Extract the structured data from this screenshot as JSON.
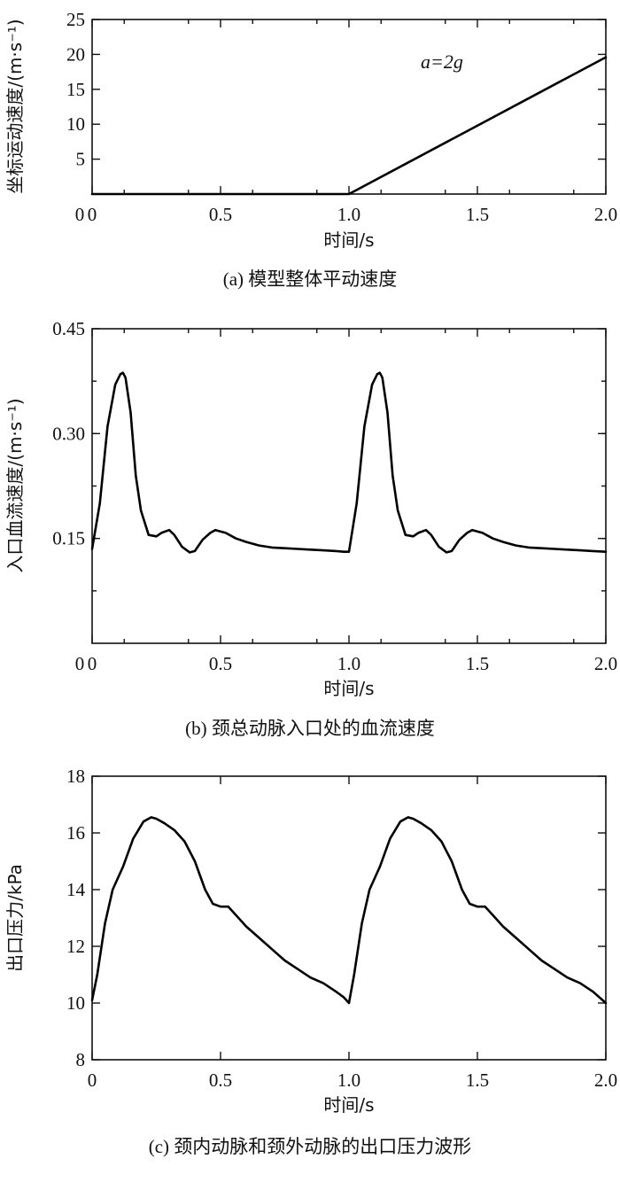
{
  "chart_data": [
    {
      "type": "line",
      "xlabel": "时间/s",
      "ylabel": "坐标运动速度/(m·s⁻¹)",
      "caption": "(a) 模型整体平动速度",
      "annotation": "a=2g",
      "xlim": [
        0,
        2.0
      ],
      "ylim": [
        0,
        25
      ],
      "xticks": [
        "0",
        "0.5",
        "1.0",
        "1.5",
        "2.0"
      ],
      "yticks": [
        "5",
        "10",
        "15",
        "20",
        "25"
      ],
      "series": [
        {
          "x": [
            0,
            1.0,
            2.0
          ],
          "y": [
            0,
            0,
            19.6
          ]
        }
      ]
    },
    {
      "type": "line",
      "xlabel": "时间/s",
      "ylabel": "入口血流速度/(m·s⁻¹)",
      "caption": "(b) 颈总动脉入口处的血流速度",
      "xlim": [
        0,
        2.0
      ],
      "ylim": [
        0.0,
        0.45
      ],
      "xticks": [
        "0",
        "0.5",
        "1.0",
        "1.5",
        "2.0"
      ],
      "yticks": [
        "0.15",
        "0.30",
        "0.45"
      ],
      "series": [
        {
          "x": [
            0,
            0.03,
            0.06,
            0.09,
            0.11,
            0.12,
            0.13,
            0.15,
            0.17,
            0.19,
            0.22,
            0.25,
            0.27,
            0.3,
            0.32,
            0.35,
            0.38,
            0.4,
            0.43,
            0.46,
            0.48,
            0.52,
            0.56,
            0.6,
            0.65,
            0.7,
            0.75,
            0.8,
            0.85,
            0.9,
            0.95,
            0.98,
            1.0,
            1.03,
            1.06,
            1.09,
            1.11,
            1.12,
            1.13,
            1.15,
            1.17,
            1.19,
            1.22,
            1.25,
            1.27,
            1.3,
            1.32,
            1.35,
            1.38,
            1.4,
            1.43,
            1.46,
            1.48,
            1.52,
            1.56,
            1.6,
            1.65,
            1.7,
            1.75,
            1.8,
            1.85,
            1.9,
            1.95,
            2.0
          ],
          "y": [
            0.135,
            0.2,
            0.31,
            0.37,
            0.385,
            0.387,
            0.38,
            0.33,
            0.24,
            0.19,
            0.155,
            0.153,
            0.158,
            0.162,
            0.155,
            0.138,
            0.13,
            0.132,
            0.148,
            0.158,
            0.162,
            0.158,
            0.15,
            0.145,
            0.14,
            0.137,
            0.136,
            0.135,
            0.134,
            0.133,
            0.132,
            0.131,
            0.131,
            0.2,
            0.31,
            0.37,
            0.385,
            0.387,
            0.38,
            0.33,
            0.24,
            0.19,
            0.155,
            0.153,
            0.158,
            0.162,
            0.155,
            0.138,
            0.13,
            0.132,
            0.148,
            0.158,
            0.162,
            0.158,
            0.15,
            0.145,
            0.14,
            0.137,
            0.136,
            0.135,
            0.134,
            0.133,
            0.132,
            0.131
          ]
        }
      ]
    },
    {
      "type": "line",
      "xlabel": "时间/s",
      "ylabel": "出口压力/kPa",
      "caption": "(c) 颈内动脉和颈外动脉的出口压力波形",
      "xlim": [
        0,
        2.0
      ],
      "ylim": [
        8,
        18
      ],
      "xticks": [
        "0",
        "0.5",
        "1.0",
        "1.5",
        "2.0"
      ],
      "yticks": [
        "8",
        "10",
        "12",
        "14",
        "16",
        "18"
      ],
      "series": [
        {
          "x": [
            0,
            0.02,
            0.05,
            0.08,
            0.12,
            0.16,
            0.2,
            0.23,
            0.25,
            0.28,
            0.32,
            0.36,
            0.4,
            0.44,
            0.47,
            0.5,
            0.53,
            0.56,
            0.6,
            0.65,
            0.7,
            0.75,
            0.8,
            0.85,
            0.9,
            0.95,
            0.98,
            1.0,
            1.02,
            1.05,
            1.08,
            1.12,
            1.16,
            1.2,
            1.23,
            1.25,
            1.28,
            1.32,
            1.36,
            1.4,
            1.44,
            1.47,
            1.5,
            1.53,
            1.56,
            1.6,
            1.65,
            1.7,
            1.75,
            1.8,
            1.85,
            1.9,
            1.95,
            2.0
          ],
          "y": [
            10.1,
            11.0,
            12.8,
            14.0,
            14.8,
            15.8,
            16.4,
            16.55,
            16.5,
            16.35,
            16.1,
            15.7,
            15.0,
            14.0,
            13.5,
            13.4,
            13.4,
            13.1,
            12.7,
            12.3,
            11.9,
            11.5,
            11.2,
            10.9,
            10.7,
            10.4,
            10.2,
            10.0,
            11.0,
            12.8,
            14.0,
            14.8,
            15.8,
            16.4,
            16.55,
            16.5,
            16.35,
            16.1,
            15.7,
            15.0,
            14.0,
            13.5,
            13.4,
            13.4,
            13.1,
            12.7,
            12.3,
            11.9,
            11.5,
            11.2,
            10.9,
            10.7,
            10.4,
            10.0
          ]
        }
      ]
    }
  ]
}
